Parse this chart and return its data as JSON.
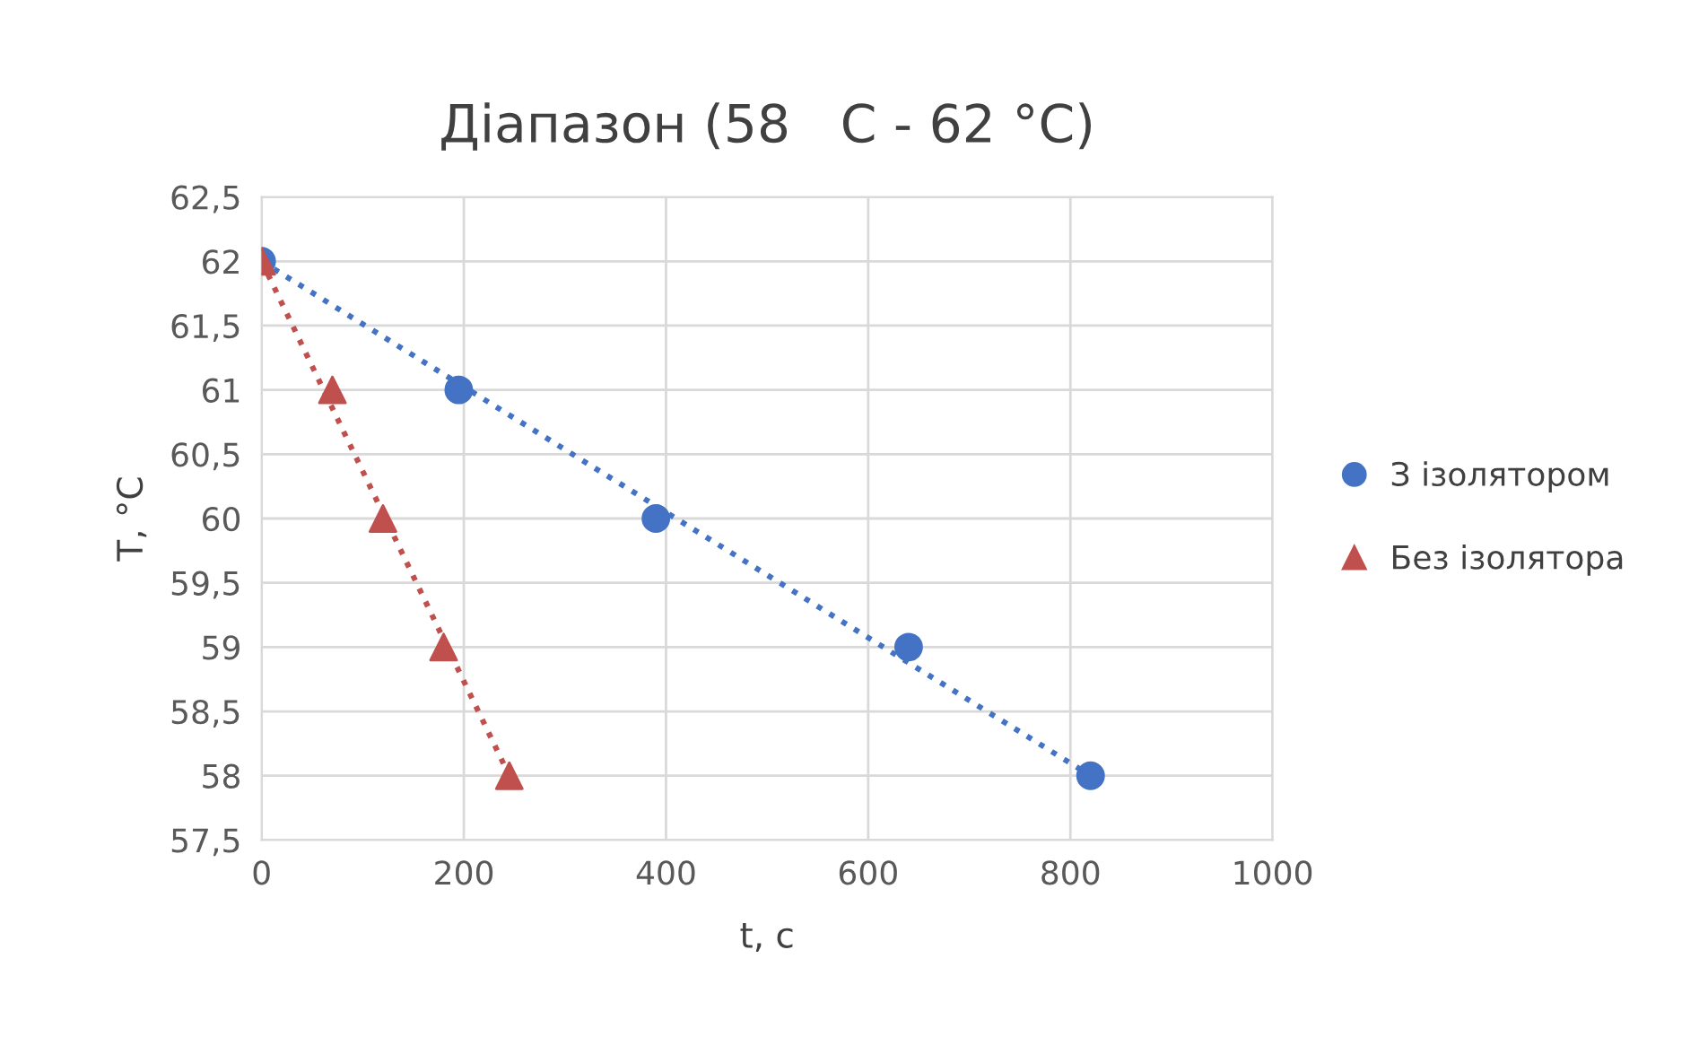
{
  "chart_data": {
    "type": "scatter",
    "title": "Діапазон (58   C - 62 °C)",
    "xlabel": "t, c",
    "ylabel": "T, °C",
    "xlim": [
      0,
      1000
    ],
    "xticks": [
      0,
      200,
      400,
      600,
      800,
      1000
    ],
    "ylim": [
      57.5,
      62.5
    ],
    "yticks": [
      {
        "value": 57.5,
        "label": "57,5"
      },
      58,
      {
        "value": 58.5,
        "label": "58,5"
      },
      59,
      {
        "value": 59.5,
        "label": "59,5"
      },
      60,
      {
        "value": 60.5,
        "label": "60,5"
      },
      61,
      {
        "value": 61.5,
        "label": "61,5"
      },
      62,
      {
        "value": 62.5,
        "label": "62,5"
      }
    ],
    "grid": true,
    "legend": "right",
    "series": [
      {
        "name": "З ізолятором",
        "color": "#4472c4",
        "marker": "circle",
        "x": [
          0,
          195,
          390,
          640,
          820
        ],
        "values": [
          62,
          61,
          60,
          59,
          58
        ]
      },
      {
        "name": "Без ізолятора",
        "color": "#c0504d",
        "marker": "triangle",
        "x": [
          0,
          70,
          120,
          180,
          245
        ],
        "values": [
          62,
          61,
          60,
          59,
          58
        ]
      },
      {
        "type": "line",
        "color": "#4472c4",
        "line_style": "dotted",
        "marker": "none",
        "x": [
          0,
          820
        ],
        "values": [
          62,
          58
        ]
      },
      {
        "type": "line",
        "color": "#c0504d",
        "line_style": "dotted",
        "marker": "none",
        "x": [
          0,
          245
        ],
        "values": [
          62,
          58
        ]
      }
    ]
  }
}
